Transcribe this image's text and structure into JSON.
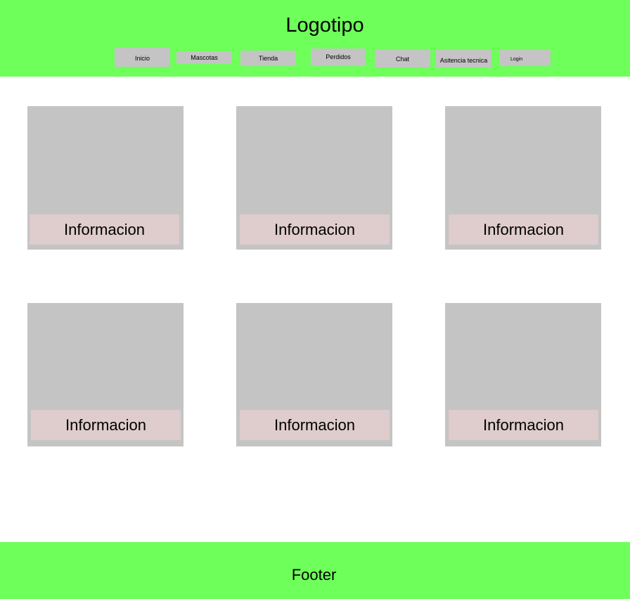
{
  "header": {
    "logo": "Logotipo",
    "background_color": "#6eff5a",
    "nav": [
      {
        "label": "Inicio"
      },
      {
        "label": "Mascotas"
      },
      {
        "label": "Tienda"
      },
      {
        "label": "Perdidos"
      },
      {
        "label": "Chat"
      },
      {
        "label": "Asitencia tecnica"
      },
      {
        "label": "Login"
      }
    ]
  },
  "main": {
    "cards": [
      {
        "info": "Informacion"
      },
      {
        "info": "Informacion"
      },
      {
        "info": "Informacion"
      },
      {
        "info": "Informacion"
      },
      {
        "info": "Informacion"
      },
      {
        "info": "Informacion"
      }
    ]
  },
  "footer": {
    "label": "Footer",
    "background_color": "#6eff5a"
  },
  "colors": {
    "placeholder": "#c4c4c4",
    "info_bar": "#dfcccc"
  }
}
